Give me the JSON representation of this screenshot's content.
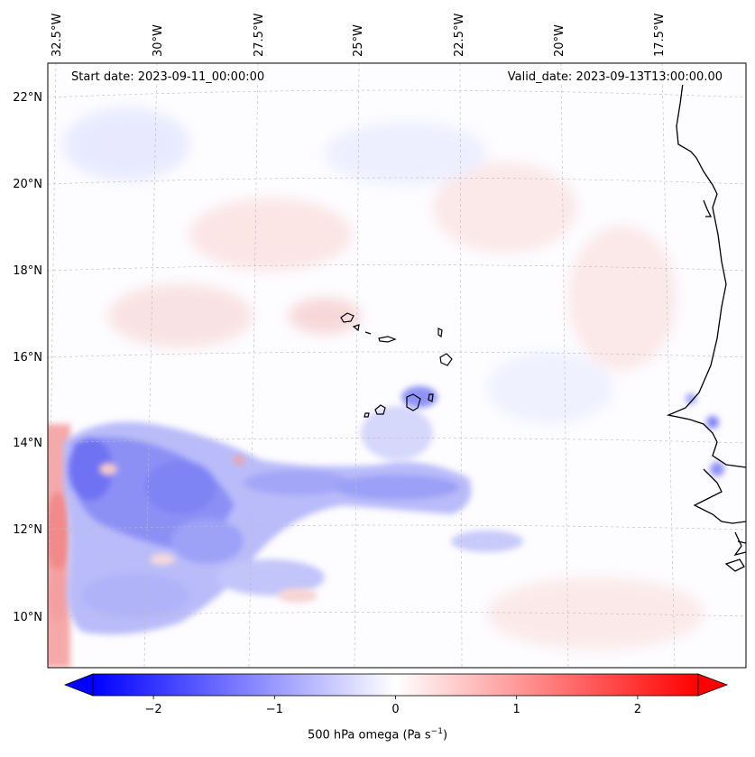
{
  "map": {
    "start_date_text": "Start date: 2023-09-11_00:00:00",
    "valid_date_text": "Valid_date: 2023-09-13T13:00:00.00",
    "lon_labels": [
      "32.5°W",
      "30°W",
      "27.5°W",
      "25°W",
      "22.5°W",
      "20°W",
      "17.5°W"
    ],
    "lat_labels": [
      "22°N",
      "20°N",
      "18°N",
      "16°N",
      "14°N",
      "12°N",
      "10°N"
    ],
    "colors": {
      "negative": "#0000ff",
      "neutral": "#ffffff",
      "positive": "#ff0000",
      "coastline": "#000000",
      "gridline": "#bbbbbb"
    }
  },
  "colorbar": {
    "label_prefix": "500 hPa omega (Pa s",
    "label_exponent": "−1",
    "label_suffix": ")",
    "min": -2.5,
    "max": 2.5,
    "extend": "both",
    "colormap": "bwr",
    "ticks": [
      "−2",
      "−1",
      "0",
      "1",
      "2"
    ],
    "tick_values": [
      -2,
      -1,
      0,
      1,
      2
    ]
  }
}
